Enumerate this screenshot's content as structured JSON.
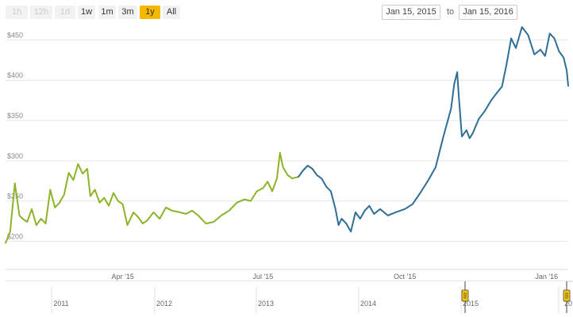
{
  "range_selector": {
    "buttons": [
      {
        "label": "1h",
        "state": "disabled"
      },
      {
        "label": "12h",
        "state": "disabled"
      },
      {
        "label": "1d",
        "state": "disabled"
      },
      {
        "label": "1w",
        "state": "normal"
      },
      {
        "label": "1m",
        "state": "normal"
      },
      {
        "label": "3m",
        "state": "normal"
      },
      {
        "label": "1y",
        "state": "active"
      },
      {
        "label": "All",
        "state": "normal"
      }
    ],
    "from_date": "Jan 15, 2015",
    "to_label": "to",
    "to_date": "Jan 15, 2016"
  },
  "colors": {
    "series_green": "#8db32a",
    "series_blue": "#2f6e95",
    "active_button": "#f5b800",
    "grid": "#e6e6e6",
    "navigator_handle": "#f0c419"
  },
  "chart_data": {
    "type": "line",
    "y_axis": {
      "ticks": [
        "$200",
        "$250",
        "$300",
        "$350",
        "$400",
        "$450"
      ],
      "ylim": [
        165,
        475
      ]
    },
    "x_axis": {
      "ticks": [
        "Apr '15",
        "Jul '15",
        "Oct '15",
        "Jan '16"
      ]
    },
    "grid": true,
    "series": [
      {
        "color": "green",
        "x": [
          "2015-01-15",
          "2015-01-18",
          "2015-01-21",
          "2015-01-24",
          "2015-01-26",
          "2015-01-29",
          "2015-02-01",
          "2015-02-04",
          "2015-02-07",
          "2015-02-10",
          "2015-02-13",
          "2015-02-16",
          "2015-02-19",
          "2015-02-22",
          "2015-02-25",
          "2015-02-28",
          "2015-03-03",
          "2015-03-06",
          "2015-03-09",
          "2015-03-11",
          "2015-03-14",
          "2015-03-17",
          "2015-03-20",
          "2015-03-23",
          "2015-03-26",
          "2015-03-29",
          "2015-04-01",
          "2015-04-04",
          "2015-04-08",
          "2015-04-11",
          "2015-04-14",
          "2015-04-17",
          "2015-04-21",
          "2015-04-25",
          "2015-04-29",
          "2015-05-03",
          "2015-05-08",
          "2015-05-12",
          "2015-05-16",
          "2015-05-20",
          "2015-05-25",
          "2015-05-30",
          "2015-06-04",
          "2015-06-09",
          "2015-06-14",
          "2015-06-19",
          "2015-06-23",
          "2015-06-27",
          "2015-07-01",
          "2015-07-04",
          "2015-07-07",
          "2015-07-10",
          "2015-07-12",
          "2015-07-14",
          "2015-07-17",
          "2015-07-20",
          "2015-07-24"
        ],
        "values": [
          198,
          212,
          272,
          232,
          228,
          224,
          240,
          220,
          228,
          222,
          264,
          242,
          248,
          258,
          285,
          276,
          296,
          284,
          290,
          256,
          264,
          248,
          254,
          244,
          260,
          250,
          246,
          220,
          236,
          230,
          222,
          226,
          236,
          228,
          242,
          238,
          236,
          234,
          238,
          232,
          222,
          224,
          232,
          238,
          248,
          252,
          250,
          262,
          266,
          274,
          262,
          278,
          310,
          292,
          282,
          278,
          280
        ]
      },
      {
        "color": "blue",
        "x": [
          "2015-07-24",
          "2015-07-27",
          "2015-07-30",
          "2015-08-02",
          "2015-08-05",
          "2015-08-08",
          "2015-08-11",
          "2015-08-14",
          "2015-08-17",
          "2015-08-19",
          "2015-08-21",
          "2015-08-24",
          "2015-08-27",
          "2015-08-30",
          "2015-09-02",
          "2015-09-05",
          "2015-09-08",
          "2015-09-11",
          "2015-09-15",
          "2015-09-20",
          "2015-09-25",
          "2015-10-01",
          "2015-10-06",
          "2015-10-11",
          "2015-10-16",
          "2015-10-21",
          "2015-10-26",
          "2015-10-31",
          "2015-11-02",
          "2015-11-04",
          "2015-11-05",
          "2015-11-07",
          "2015-11-10",
          "2015-11-12",
          "2015-11-14",
          "2015-11-18",
          "2015-11-22",
          "2015-11-26",
          "2015-11-30",
          "2015-12-03",
          "2015-12-06",
          "2015-12-09",
          "2015-12-12",
          "2015-12-16",
          "2015-12-20",
          "2015-12-24",
          "2015-12-28",
          "2015-12-31",
          "2016-01-03",
          "2016-01-06",
          "2016-01-09",
          "2016-01-12",
          "2016-01-14",
          "2016-01-15"
        ],
        "values": [
          280,
          288,
          294,
          290,
          282,
          278,
          268,
          262,
          240,
          220,
          228,
          222,
          212,
          236,
          228,
          238,
          244,
          234,
          240,
          232,
          236,
          240,
          246,
          260,
          275,
          292,
          330,
          365,
          395,
          410,
          380,
          330,
          338,
          328,
          334,
          352,
          362,
          375,
          385,
          392,
          420,
          452,
          440,
          466,
          456,
          432,
          438,
          430,
          458,
          452,
          436,
          428,
          412,
          393
        ]
      }
    ]
  },
  "navigator": {
    "year_labels": [
      "2011",
      "2012",
      "2013",
      "2014",
      "2015",
      "20"
    ]
  }
}
